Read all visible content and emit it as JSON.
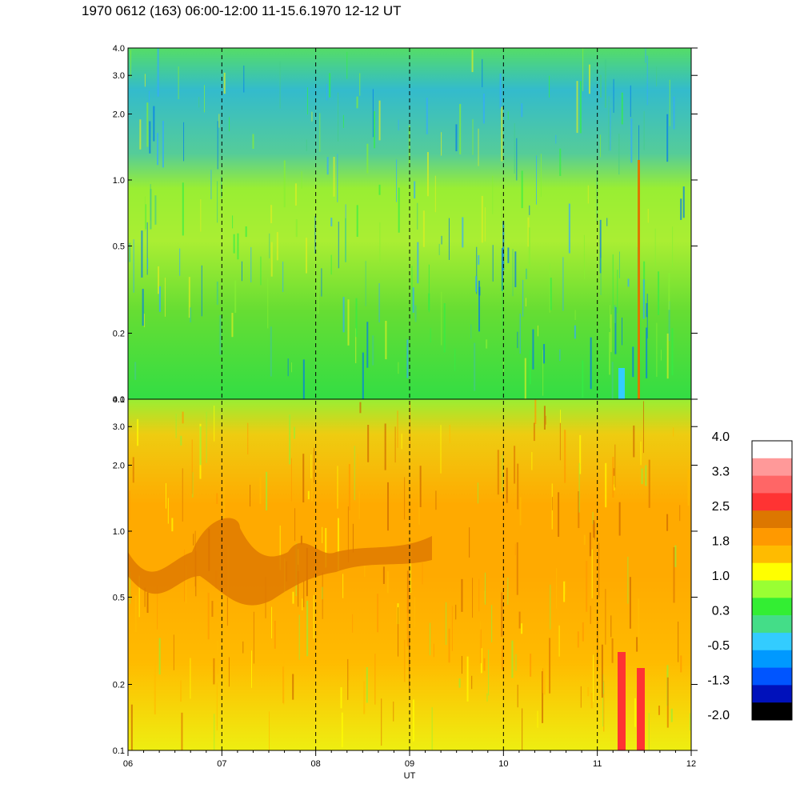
{
  "title": "1970 0612 (163) 06:00-12:00 11-15.6.1970  12-12 UT",
  "chart_data": {
    "type": "heatmap",
    "title": "1970 0612 (163) 06:00-12:00 11-15.6.1970  12-12 UT",
    "xlabel": "UT",
    "x_ticks": [
      "06",
      "07",
      "08",
      "09",
      "10",
      "11",
      "12"
    ],
    "xlim": [
      6,
      12
    ],
    "y_scale": "log",
    "ylim": [
      0.1,
      4.0
    ],
    "y_ticks": [
      "0.1",
      "0.2",
      "0.5",
      "1.0",
      "2.0",
      "3.0",
      "4.0"
    ],
    "dashed_vertical_lines_at": [
      7,
      8,
      9,
      10,
      11
    ],
    "panels": [
      {
        "name": "top",
        "dominant_range": [
          -0.5,
          1.0
        ]
      },
      {
        "name": "bottom",
        "dominant_range": [
          1.0,
          2.5
        ]
      }
    ],
    "colorbar": {
      "labels": [
        "4.0",
        "3.3",
        "2.5",
        "1.8",
        "1.0",
        "0.3",
        "-0.5",
        "-1.3",
        "-2.0"
      ],
      "colors": [
        "#ffffff",
        "#ff9999",
        "#ff6666",
        "#ff3333",
        "#dd7700",
        "#ff9900",
        "#ffbb00",
        "#ffff00",
        "#99ff33",
        "#33ee33",
        "#44dd88",
        "#33ccff",
        "#0099ff",
        "#0055ff",
        "#0011bb",
        "#000000"
      ]
    }
  }
}
